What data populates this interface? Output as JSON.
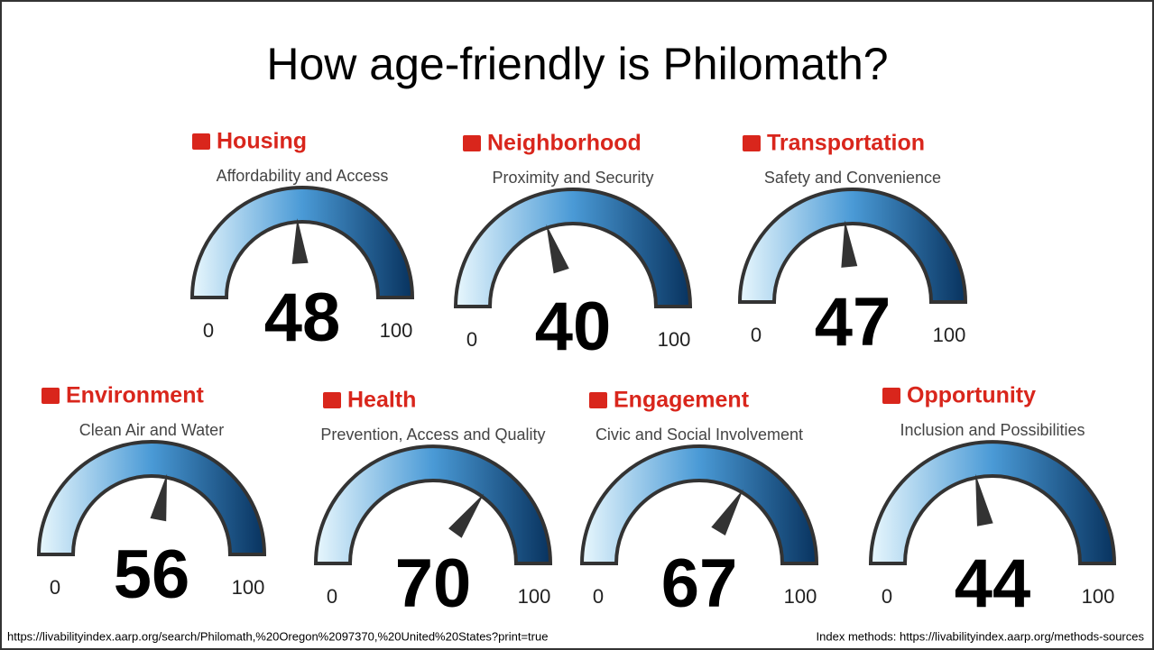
{
  "title": "How age-friendly is Philomath?",
  "footer_left": "https://livabilityindex.aarp.org/search/Philomath,%20Oregon%2097370,%20United%20States?print=true",
  "footer_right": "Index methods: https://livabilityindex.aarp.org/methods-sources",
  "chart_data": [
    {
      "type": "gauge",
      "title": "Housing",
      "subtitle": "Affordability and Access",
      "value": 48,
      "ylim": [
        0,
        100
      ],
      "yticks": [
        0,
        100
      ]
    },
    {
      "type": "gauge",
      "title": "Neighborhood",
      "subtitle": "Proximity and Security",
      "value": 40,
      "ylim": [
        0,
        100
      ],
      "yticks": [
        0,
        100
      ]
    },
    {
      "type": "gauge",
      "title": "Transportation",
      "subtitle": "Safety and Convenience",
      "value": 47,
      "ylim": [
        0,
        100
      ],
      "yticks": [
        0,
        100
      ]
    },
    {
      "type": "gauge",
      "title": "Environment",
      "subtitle": "Clean Air and Water",
      "value": 56,
      "ylim": [
        0,
        100
      ],
      "yticks": [
        0,
        100
      ]
    },
    {
      "type": "gauge",
      "title": "Health",
      "subtitle": "Prevention, Access and Quality",
      "value": 70,
      "ylim": [
        0,
        100
      ],
      "yticks": [
        0,
        100
      ]
    },
    {
      "type": "gauge",
      "title": "Engagement",
      "subtitle": "Civic and Social Involvement",
      "value": 67,
      "ylim": [
        0,
        100
      ],
      "yticks": [
        0,
        100
      ]
    },
    {
      "type": "gauge",
      "title": "Opportunity",
      "subtitle": "Inclusion and Possibilities",
      "value": 44,
      "ylim": [
        0,
        100
      ],
      "yticks": [
        0,
        100
      ]
    }
  ]
}
